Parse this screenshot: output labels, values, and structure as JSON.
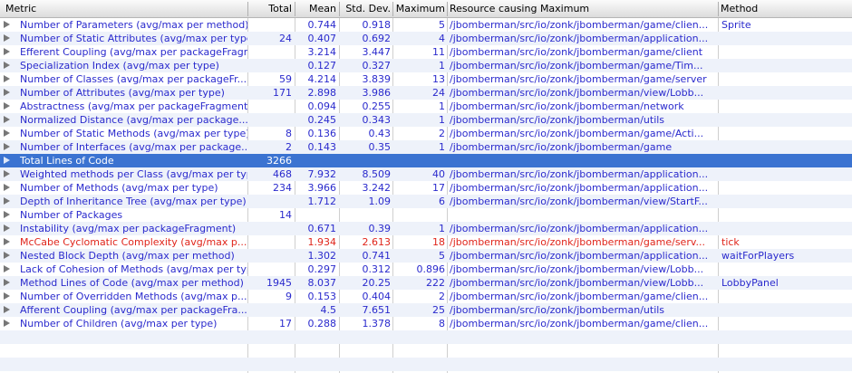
{
  "columns": {
    "metric": "Metric",
    "total": "Total",
    "mean": "Mean",
    "stddev": "Std. Dev.",
    "maximum": "Maximum",
    "resource": "Resource causing Maximum",
    "method": "Method"
  },
  "rows": [
    {
      "metric": "Number of Parameters (avg/max per method)",
      "total": "",
      "mean": "0.744",
      "stddev": "0.918",
      "maximum": "5",
      "resource": "/jbomberman/src/io/zonk/jbomberman/game/clien...",
      "method": "Sprite"
    },
    {
      "metric": "Number of Static Attributes (avg/max per type)",
      "total": "24",
      "mean": "0.407",
      "stddev": "0.692",
      "maximum": "4",
      "resource": "/jbomberman/src/io/zonk/jbomberman/application...",
      "method": ""
    },
    {
      "metric": "Efferent Coupling (avg/max per packageFragment)",
      "total": "",
      "mean": "3.214",
      "stddev": "3.447",
      "maximum": "11",
      "resource": "/jbomberman/src/io/zonk/jbomberman/game/client",
      "method": ""
    },
    {
      "metric": "Specialization Index (avg/max per type)",
      "total": "",
      "mean": "0.127",
      "stddev": "0.327",
      "maximum": "1",
      "resource": "/jbomberman/src/io/zonk/jbomberman/game/Tim...",
      "method": ""
    },
    {
      "metric": "Number of Classes (avg/max per packageFr...",
      "total": "59",
      "mean": "4.214",
      "stddev": "3.839",
      "maximum": "13",
      "resource": "/jbomberman/src/io/zonk/jbomberman/game/server",
      "method": ""
    },
    {
      "metric": "Number of Attributes (avg/max per type)",
      "total": "171",
      "mean": "2.898",
      "stddev": "3.986",
      "maximum": "24",
      "resource": "/jbomberman/src/io/zonk/jbomberman/view/Lobb...",
      "method": ""
    },
    {
      "metric": "Abstractness (avg/max per packageFragment)",
      "total": "",
      "mean": "0.094",
      "stddev": "0.255",
      "maximum": "1",
      "resource": "/jbomberman/src/io/zonk/jbomberman/network",
      "method": ""
    },
    {
      "metric": "Normalized Distance (avg/max per package...",
      "total": "",
      "mean": "0.245",
      "stddev": "0.343",
      "maximum": "1",
      "resource": "/jbomberman/src/io/zonk/jbomberman/utils",
      "method": ""
    },
    {
      "metric": "Number of Static Methods (avg/max per type)",
      "total": "8",
      "mean": "0.136",
      "stddev": "0.43",
      "maximum": "2",
      "resource": "/jbomberman/src/io/zonk/jbomberman/game/Acti...",
      "method": ""
    },
    {
      "metric": "Number of Interfaces (avg/max per package...",
      "total": "2",
      "mean": "0.143",
      "stddev": "0.35",
      "maximum": "1",
      "resource": "/jbomberman/src/io/zonk/jbomberman/game",
      "method": ""
    },
    {
      "metric": "Total Lines of Code",
      "total": "3266",
      "mean": "",
      "stddev": "",
      "maximum": "",
      "resource": "",
      "method": "",
      "selected": true
    },
    {
      "metric": "Weighted methods per Class (avg/max per type)",
      "total": "468",
      "mean": "7.932",
      "stddev": "8.509",
      "maximum": "40",
      "resource": "/jbomberman/src/io/zonk/jbomberman/application...",
      "method": ""
    },
    {
      "metric": "Number of Methods (avg/max per type)",
      "total": "234",
      "mean": "3.966",
      "stddev": "3.242",
      "maximum": "17",
      "resource": "/jbomberman/src/io/zonk/jbomberman/application...",
      "method": ""
    },
    {
      "metric": "Depth of Inheritance Tree (avg/max per type)",
      "total": "",
      "mean": "1.712",
      "stddev": "1.09",
      "maximum": "6",
      "resource": "/jbomberman/src/io/zonk/jbomberman/view/StartF...",
      "method": ""
    },
    {
      "metric": "Number of Packages",
      "total": "14",
      "mean": "",
      "stddev": "",
      "maximum": "",
      "resource": "",
      "method": ""
    },
    {
      "metric": "Instability (avg/max per packageFragment)",
      "total": "",
      "mean": "0.671",
      "stddev": "0.39",
      "maximum": "1",
      "resource": "/jbomberman/src/io/zonk/jbomberman/application...",
      "method": ""
    },
    {
      "metric": "McCabe Cyclomatic Complexity (avg/max p...",
      "total": "",
      "mean": "1.934",
      "stddev": "2.613",
      "maximum": "18",
      "resource": "/jbomberman/src/io/zonk/jbomberman/game/serv...",
      "method": "tick",
      "warning": true
    },
    {
      "metric": "Nested Block Depth (avg/max per method)",
      "total": "",
      "mean": "1.302",
      "stddev": "0.741",
      "maximum": "5",
      "resource": "/jbomberman/src/io/zonk/jbomberman/application...",
      "method": "waitForPlayers"
    },
    {
      "metric": "Lack of Cohesion of Methods (avg/max per type)",
      "total": "",
      "mean": "0.297",
      "stddev": "0.312",
      "maximum": "0.896",
      "resource": "/jbomberman/src/io/zonk/jbomberman/view/Lobb...",
      "method": ""
    },
    {
      "metric": "Method Lines of Code (avg/max per method)",
      "total": "1945",
      "mean": "8.037",
      "stddev": "20.25",
      "maximum": "222",
      "resource": "/jbomberman/src/io/zonk/jbomberman/view/Lobb...",
      "method": "LobbyPanel"
    },
    {
      "metric": "Number of Overridden Methods (avg/max p...",
      "total": "9",
      "mean": "0.153",
      "stddev": "0.404",
      "maximum": "2",
      "resource": "/jbomberman/src/io/zonk/jbomberman/game/clien...",
      "method": ""
    },
    {
      "metric": "Afferent Coupling (avg/max per packageFra...",
      "total": "",
      "mean": "4.5",
      "stddev": "7.651",
      "maximum": "25",
      "resource": "/jbomberman/src/io/zonk/jbomberman/utils",
      "method": ""
    },
    {
      "metric": "Number of Children (avg/max per type)",
      "total": "17",
      "mean": "0.288",
      "stddev": "1.378",
      "maximum": "8",
      "resource": "/jbomberman/src/io/zonk/jbomberman/game/clien...",
      "method": ""
    }
  ],
  "colors": {
    "link": "#2a2acd",
    "selection": "#3b73d1",
    "warning": "#e0251b",
    "stripe": "#eef2fa"
  }
}
